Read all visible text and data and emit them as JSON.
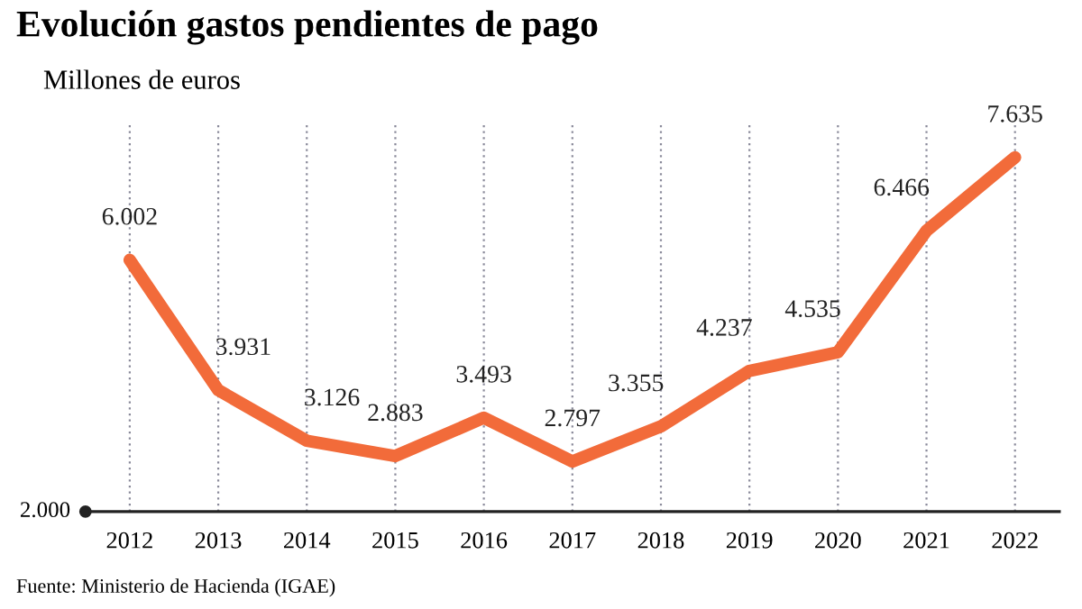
{
  "chart_data": {
    "type": "line",
    "title": "Evolución gastos pendientes de pago",
    "subtitle": "Millones de euros",
    "categories": [
      "2012",
      "2013",
      "2014",
      "2015",
      "2016",
      "2017",
      "2018",
      "2019",
      "2020",
      "2021",
      "2022"
    ],
    "series": [
      {
        "color": "#f26b3a",
        "values": [
          6002,
          3931,
          3126,
          2883,
          3493,
          2797,
          3355,
          4237,
          4535,
          6466,
          7635
        ],
        "value_labels": [
          "6.002",
          "3.931",
          "3.126",
          "2.883",
          "3.493",
          "2.797",
          "3.355",
          "4.237",
          "4.535",
          "6.466",
          "7.635"
        ]
      }
    ],
    "grid": "x",
    "marker": "none",
    "line_style": "solid",
    "ylim": [
      2000,
      8200
    ],
    "annotations": [
      "2.000",
      "Fuente: Ministerio de Hacienda (IGAE)"
    ]
  }
}
